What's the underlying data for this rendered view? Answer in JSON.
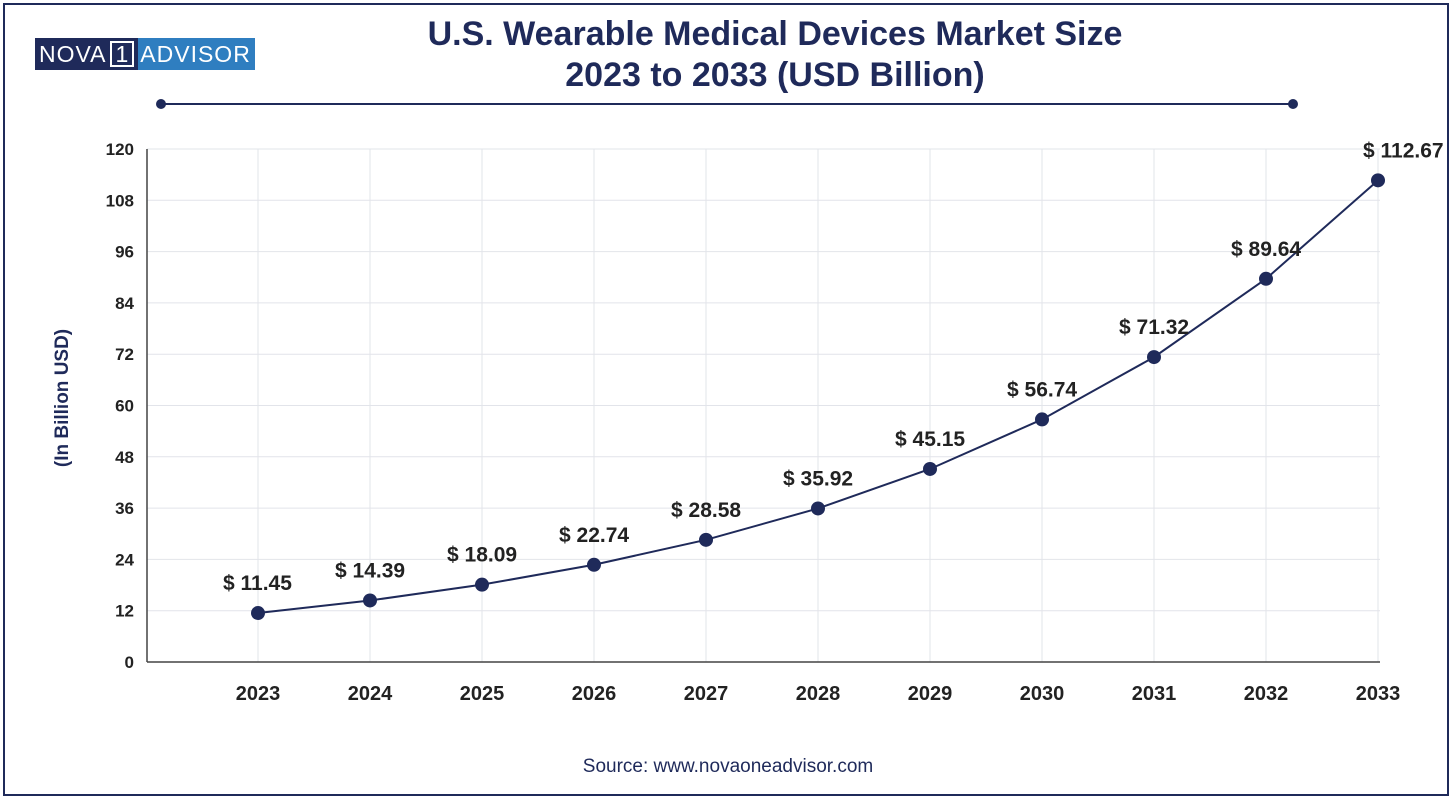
{
  "logo": {
    "left": "NOVA",
    "num": "1",
    "right": "ADVISOR"
  },
  "header": {
    "title_line1": "U.S. Wearable Medical Devices Market Size",
    "title_line2": "2023 to 2033 (USD Billion)"
  },
  "source": "Source: www.novaoneadvisor.com",
  "colors": {
    "primary": "#1f2a5a",
    "accent": "#2f7ec0",
    "grid": "#e2e4ea"
  },
  "chart_data": {
    "type": "line",
    "title": "U.S. Wearable Medical Devices Market Size 2023 to 2033 (USD Billion)",
    "xlabel": "",
    "ylabel": "(In Billion USD)",
    "ylim": [
      0,
      120
    ],
    "yticks": [
      0,
      12,
      24,
      36,
      48,
      60,
      72,
      84,
      96,
      108,
      120
    ],
    "grid": true,
    "categories": [
      "2023",
      "2024",
      "2025",
      "2026",
      "2027",
      "2028",
      "2029",
      "2030",
      "2031",
      "2032",
      "2033"
    ],
    "values": [
      11.45,
      14.39,
      18.09,
      22.74,
      28.58,
      35.92,
      45.15,
      56.74,
      71.32,
      89.64,
      112.67
    ],
    "data_labels": [
      "$ 11.45",
      "$ 14.39",
      "$ 18.09",
      "$ 22.74",
      "$ 28.58",
      "$ 35.92",
      "$ 45.15",
      "$ 56.74",
      "$ 71.32",
      "$ 89.64",
      "$ 112.67"
    ]
  }
}
